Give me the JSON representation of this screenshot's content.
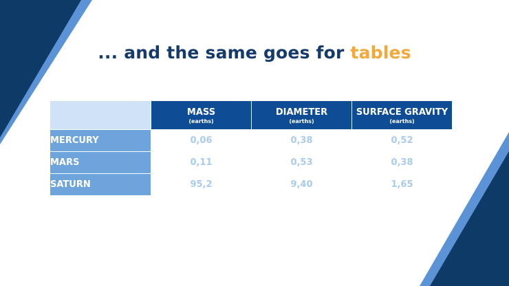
{
  "slide": {
    "title_prefix": "... and the same goes for ",
    "title_highlight": "tables",
    "colors": {
      "title": "#163a6b",
      "highlight": "#f5a83a",
      "header_bg": "#0e4d96",
      "row_label_bg": "#6ea4dc",
      "corner_bg": "#cfe2f6",
      "value_text": "#a9ccee"
    }
  },
  "table": {
    "columns": [
      {
        "label": "MASS",
        "unit": "(earths)"
      },
      {
        "label": "DIAMETER",
        "unit": "(earths)"
      },
      {
        "label": "SURFACE GRAVITY",
        "unit": "(earths)"
      }
    ],
    "rows": [
      {
        "label": "MERCURY",
        "values": [
          "0,06",
          "0,38",
          "0,52"
        ]
      },
      {
        "label": "MARS",
        "values": [
          "0,11",
          "0,53",
          "0,38"
        ]
      },
      {
        "label": "SATURN",
        "values": [
          "95,2",
          "9,40",
          "1,65"
        ]
      }
    ]
  }
}
